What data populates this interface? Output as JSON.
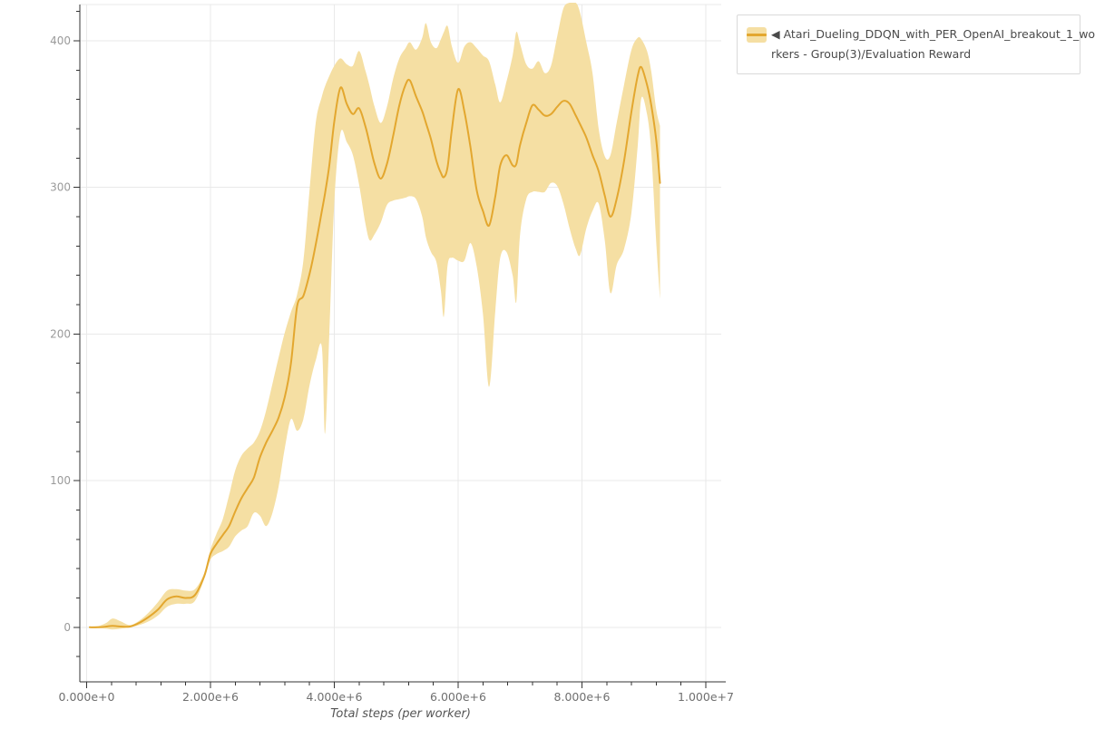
{
  "chart_data": {
    "type": "line",
    "title": "",
    "xlabel": "Total steps (per worker)",
    "ylabel": "",
    "grid": true,
    "legend_position": "top-right",
    "x_axis": {
      "ticks": [
        {
          "label": "0.000e+0",
          "value_millions": 0
        },
        {
          "label": "2.000e+6",
          "value_millions": 2
        },
        {
          "label": "4.000e+6",
          "value_millions": 4
        },
        {
          "label": "6.000e+6",
          "value_millions": 6
        },
        {
          "label": "8.000e+6",
          "value_millions": 8
        },
        {
          "label": "1.000e+7",
          "value_millions": 10
        }
      ],
      "minor_step_millions": 0.4,
      "range_millions": [
        -0.11,
        10.3
      ]
    },
    "y_axis": {
      "ticks": [
        {
          "label": "0",
          "value": 0
        },
        {
          "label": "100",
          "value": 100
        },
        {
          "label": "200",
          "value": 200
        },
        {
          "label": "300",
          "value": 300
        },
        {
          "label": "400",
          "value": 400
        }
      ],
      "minor_step": 20,
      "minor_extra": [
        -20,
        420
      ],
      "range": [
        -37,
        425
      ]
    },
    "series": [
      {
        "name": "Atari_Dueling_DDQN_with_PER_OpenAI_breakout_1_workers - Group(3)/Evaluation Reward",
        "legend_display_lines": [
          "◀ Atari_Dueling_DDQN_with_PER_OpenAI_breakout_1_wo",
          "rkers - Group(3)/Evaluation Reward"
        ],
        "line_color": "#e3a72f",
        "band_color": "#f5dfa3",
        "x_millions": [
          0.05,
          0.2,
          0.32,
          0.42,
          0.55,
          0.7,
          0.85,
          1,
          1.15,
          1.3,
          1.45,
          1.6,
          1.75,
          1.9,
          2,
          2.1,
          2.2,
          2.3,
          2.4,
          2.5,
          2.6,
          2.7,
          2.8,
          2.9,
          3,
          3.1,
          3.2,
          3.3,
          3.4,
          3.5,
          3.6,
          3.7,
          3.8,
          3.85,
          3.92,
          4,
          4.1,
          4.2,
          4.3,
          4.4,
          4.5,
          4.57,
          4.65,
          4.75,
          4.85,
          4.95,
          5.05,
          5.15,
          5.22,
          5.32,
          5.42,
          5.48,
          5.56,
          5.65,
          5.72,
          5.77,
          5.83,
          5.9,
          6,
          6.1,
          6.2,
          6.3,
          6.4,
          6.5,
          6.6,
          6.68,
          6.78,
          6.88,
          6.94,
          7,
          7.1,
          7.2,
          7.3,
          7.4,
          7.5,
          7.6,
          7.7,
          7.8,
          7.9,
          7.97,
          8.07,
          8.17,
          8.27,
          8.37,
          8.46,
          8.56,
          8.68,
          8.8,
          8.9,
          8.96,
          9.05,
          9.12,
          9.2,
          9.26
        ],
        "mean": [
          0,
          0,
          0.5,
          1,
          0.5,
          0.5,
          3,
          7,
          12,
          19,
          21,
          20,
          22,
          35,
          50,
          57,
          63,
          69,
          79,
          88,
          95,
          102,
          116,
          126,
          134,
          143,
          157,
          180,
          219,
          226,
          241,
          261,
          284,
          296,
          315,
          345,
          368,
          357,
          350,
          354,
          342,
          330,
          316,
          306,
          316,
          335,
          356,
          370,
          373,
          362,
          352,
          344,
          333,
          318,
          310,
          307,
          314,
          340,
          367,
          352,
          327,
          298,
          284,
          274,
          294,
          315,
          322,
          315,
          316,
          329,
          344,
          356,
          353,
          349,
          350,
          355,
          359,
          357,
          349,
          343,
          334,
          322,
          311,
          294,
          280,
          292,
          318,
          352,
          376,
          382,
          370,
          356,
          332,
          303
        ],
        "band_low": [
          0,
          -0.5,
          -1,
          -1.5,
          -1,
          0,
          1.5,
          4,
          8,
          14,
          16,
          16,
          18,
          33,
          46,
          50,
          52,
          55,
          62,
          66,
          69,
          78,
          76,
          69,
          78,
          96,
          122,
          142,
          134,
          142,
          165,
          182,
          191,
          132,
          200,
          290,
          337,
          331,
          322,
          302,
          276,
          264,
          268,
          276,
          288,
          291,
          292,
          293,
          294,
          292,
          280,
          266,
          256,
          249,
          230,
          212,
          247,
          252,
          250,
          250,
          262,
          246,
          214,
          164,
          216,
          252,
          256,
          240,
          222,
          268,
          292,
          297,
          297,
          297,
          303,
          301,
          289,
          272,
          258,
          254,
          272,
          284,
          289,
          263,
          228,
          247,
          258,
          283,
          328,
          361,
          350,
          324,
          262,
          224
        ],
        "band_high": [
          0.5,
          1,
          3,
          6,
          4,
          1.5,
          4.5,
          10,
          17,
          25,
          26,
          25,
          26,
          37,
          53,
          64,
          74,
          90,
          107,
          117,
          122,
          126,
          134,
          148,
          166,
          184,
          201,
          215,
          227,
          250,
          298,
          344,
          362,
          369,
          376,
          383,
          388,
          384,
          383,
          393,
          380,
          369,
          355,
          344,
          355,
          374,
          388,
          395,
          399,
          394,
          402,
          412,
          399,
          395,
          401,
          406,
          410,
          396,
          385,
          396,
          399,
          395,
          390,
          386,
          370,
          358,
          372,
          390,
          406,
          398,
          384,
          381,
          386,
          378,
          383,
          403,
          422,
          426,
          426,
          419,
          399,
          378,
          340,
          321,
          322,
          344,
          370,
          394,
          402,
          401,
          393,
          379,
          353,
          342
        ]
      }
    ]
  },
  "theme": {
    "background": "#ffffff",
    "grid_color": "#e9e9e9",
    "axis_color": "#333333",
    "x_tick_label_color": "#6f6f6f",
    "y_tick_label_color": "#9a9a9a",
    "axis_title_color": "#555555",
    "legend_border_color": "#d9d9d9",
    "legend_text_color": "#4a4a4a"
  }
}
